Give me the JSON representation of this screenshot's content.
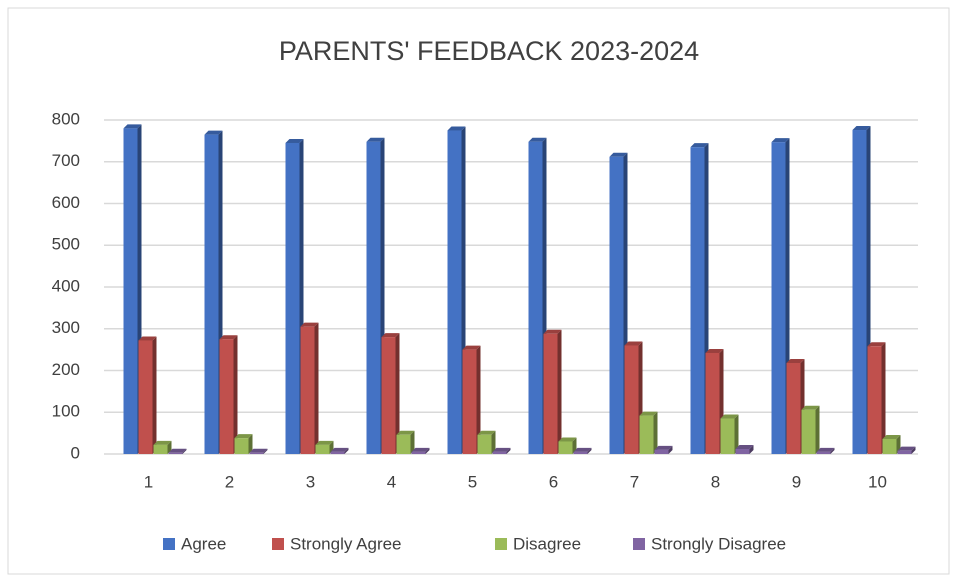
{
  "chart_data": {
    "type": "bar",
    "title": "PARENTS' FEEDBACK 2023-2024",
    "categories": [
      "1",
      "2",
      "3",
      "4",
      "5",
      "6",
      "7",
      "8",
      "9",
      "10"
    ],
    "series": [
      {
        "name": "Agree",
        "color": "#4472c4",
        "values": [
          780,
          765,
          745,
          748,
          775,
          748,
          712,
          735,
          747,
          776
        ]
      },
      {
        "name": "Strongly Agree",
        "color": "#c0504d",
        "values": [
          272,
          275,
          305,
          280,
          250,
          288,
          260,
          242,
          218,
          258
        ]
      },
      {
        "name": "Disagree",
        "color": "#9bbb59",
        "values": [
          22,
          38,
          22,
          46,
          46,
          30,
          92,
          85,
          106,
          36
        ]
      },
      {
        "name": "Strongly Disagree",
        "color": "#8064a2",
        "values": [
          3,
          3,
          5,
          5,
          5,
          5,
          10,
          12,
          5,
          8
        ]
      }
    ],
    "ylim": [
      0,
      800
    ],
    "yticks": [
      0,
      100,
      200,
      300,
      400,
      500,
      600,
      700,
      800
    ],
    "grid": true,
    "legend": "bottom"
  }
}
